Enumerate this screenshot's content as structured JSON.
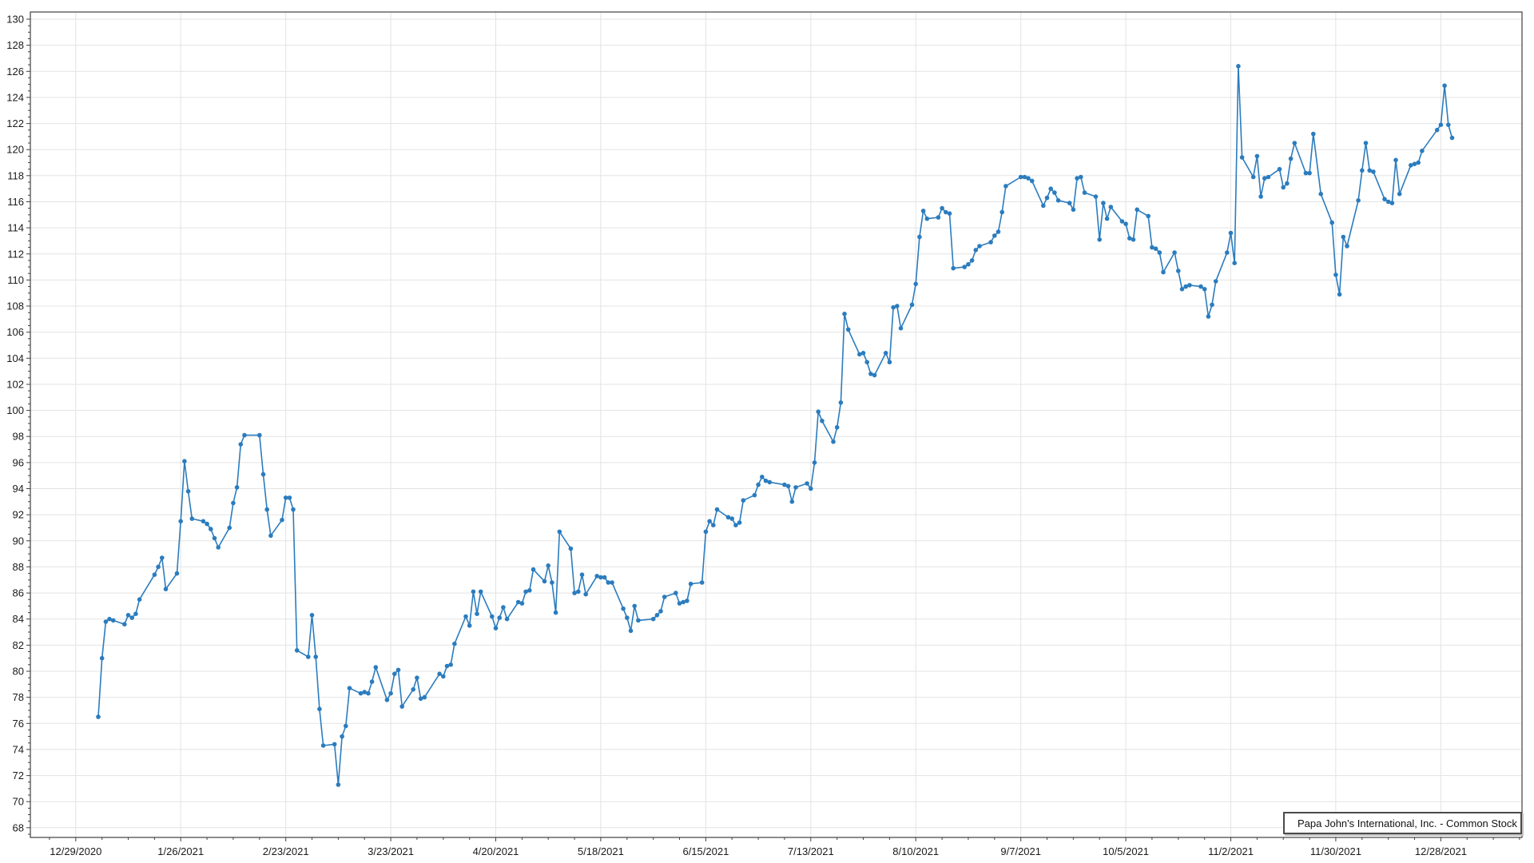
{
  "chart_data": {
    "type": "line",
    "title": "",
    "xlabel": "",
    "ylabel": "",
    "legend_position": "bottom-right",
    "grid": "on",
    "background_color": "#ffffff",
    "grid_color": "#e3e3e3",
    "axis_color": "#404040",
    "tick_label_color": "#1a1a1a",
    "y_axis": {
      "label_min": 68,
      "label_max": 130,
      "major_step": 2,
      "minor_step": 0.5,
      "ylim": [
        67.25,
        130.55
      ]
    },
    "x_axis": {
      "tick_labels": [
        "12/29/2020",
        "1/26/2021",
        "2/23/2021",
        "3/23/2021",
        "4/20/2021",
        "5/18/2021",
        "6/15/2021",
        "7/13/2021",
        "8/10/2021",
        "9/7/2021",
        "10/5/2021",
        "11/2/2021",
        "11/30/2021",
        "12/28/2021"
      ],
      "tick_start_date": "2020-12-29",
      "tick_interval_days": 28,
      "minor_tick_interval_days": 7
    },
    "series": [
      {
        "name": "Papa John's International, Inc. - Common Stock",
        "color": "#2b7cbe",
        "marker": "circle",
        "start_date": "2021-01-04",
        "end_date": "2021-12-31",
        "frequency": "trading-days",
        "market_holidays": [
          "2021-01-18",
          "2021-02-15",
          "2021-04-02",
          "2021-05-31",
          "2021-07-05",
          "2021-09-06",
          "2021-11-25",
          "2021-12-24"
        ],
        "values": [
          76.5,
          81.0,
          83.8,
          84.0,
          83.9,
          83.6,
          84.3,
          84.1,
          84.4,
          85.5,
          87.4,
          88.0,
          88.7,
          86.3,
          87.5,
          91.5,
          96.1,
          93.8,
          91.7,
          91.5,
          91.3,
          90.9,
          90.2,
          89.5,
          91.0,
          92.9,
          94.1,
          97.4,
          98.1,
          98.1,
          95.1,
          92.4,
          90.4,
          91.6,
          93.3,
          93.3,
          92.4,
          81.6,
          81.1,
          84.3,
          81.1,
          77.1,
          74.3,
          74.4,
          71.3,
          75.0,
          75.8,
          78.7,
          78.3,
          78.4,
          78.3,
          79.2,
          80.3,
          77.8,
          78.3,
          79.8,
          80.1,
          77.3,
          78.6,
          79.5,
          77.9,
          78.0,
          79.8,
          79.6,
          80.4,
          80.5,
          82.1,
          84.2,
          83.5,
          86.1,
          84.4,
          86.1,
          84.2,
          83.3,
          84.1,
          84.9,
          84.0,
          85.3,
          85.2,
          86.1,
          86.2,
          87.8,
          86.9,
          88.1,
          86.8,
          84.5,
          90.7,
          89.4,
          86.0,
          86.1,
          87.4,
          85.9,
          87.3,
          87.2,
          87.2,
          86.8,
          86.8,
          84.8,
          84.1,
          83.1,
          85.0,
          83.9,
          84.0,
          84.3,
          84.6,
          85.7,
          86.0,
          85.2,
          85.3,
          85.4,
          86.7,
          86.8,
          90.7,
          91.5,
          91.2,
          92.4,
          91.8,
          91.7,
          91.2,
          91.4,
          93.1,
          93.5,
          94.3,
          94.9,
          94.6,
          94.5,
          94.3,
          94.2,
          93.0,
          94.1,
          94.4,
          94.0,
          96.0,
          99.9,
          99.2,
          97.6,
          98.7,
          100.6,
          107.4,
          106.2,
          104.3,
          104.4,
          103.7,
          102.8,
          102.7,
          104.4,
          103.7,
          107.9,
          108.0,
          106.3,
          108.1,
          109.7,
          113.3,
          115.3,
          114.7,
          114.8,
          115.5,
          115.2,
          115.1,
          110.9,
          111.0,
          111.2,
          111.5,
          112.3,
          112.6,
          112.9,
          113.4,
          113.7,
          115.2,
          117.2,
          117.9,
          117.9,
          117.8,
          117.6,
          115.7,
          116.3,
          117.0,
          116.7,
          116.1,
          115.9,
          115.4,
          117.8,
          117.9,
          116.7,
          116.4,
          113.1,
          115.9,
          114.7,
          115.6,
          114.5,
          114.3,
          113.2,
          113.1,
          115.4,
          114.9,
          112.5,
          112.4,
          112.1,
          110.6,
          112.1,
          110.7,
          109.3,
          109.5,
          109.6,
          109.5,
          109.3,
          107.2,
          108.1,
          109.9,
          112.1,
          113.6,
          111.3,
          126.4,
          119.4,
          117.9,
          119.5,
          116.4,
          117.8,
          117.9,
          118.5,
          117.1,
          117.4,
          119.3,
          120.5,
          118.2,
          118.2,
          121.2,
          116.6,
          114.4,
          110.4,
          108.9,
          113.3,
          112.6,
          116.1,
          118.4,
          120.5,
          118.4,
          118.3,
          116.2,
          116.0,
          115.9,
          119.2,
          116.6,
          118.8,
          118.9,
          119.0,
          119.9,
          121.5,
          121.9,
          124.9,
          121.9,
          120.9
        ]
      }
    ],
    "legend": {
      "label": "Papa John's International, Inc. - Common Stock"
    }
  }
}
